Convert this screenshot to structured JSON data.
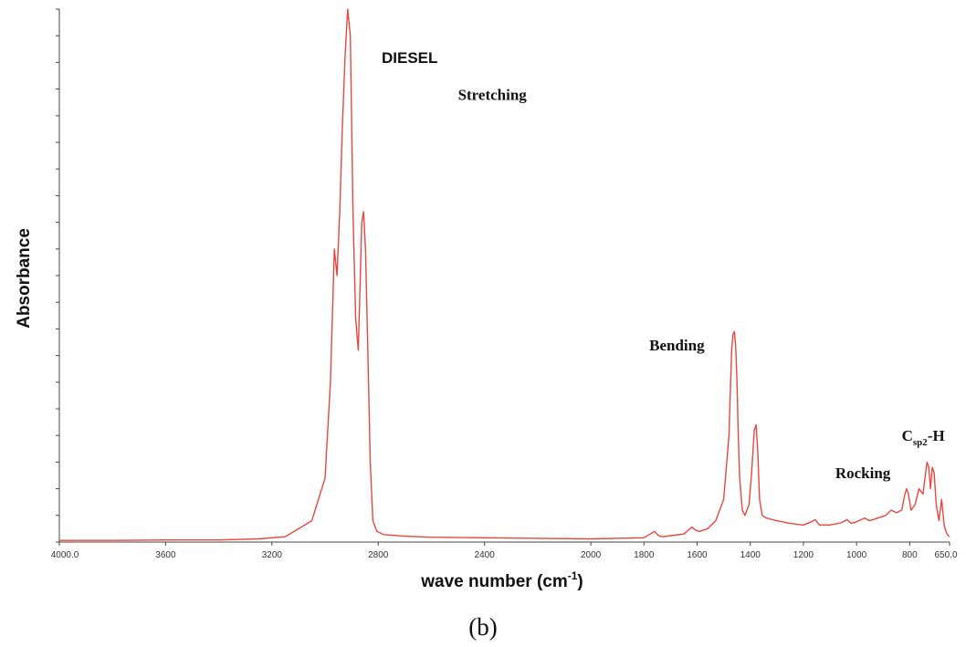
{
  "chart_data": {
    "type": "line",
    "title": "DIESEL",
    "xlabel": {
      "main": "wave number (cm",
      "sup": "-1",
      "close": ")"
    },
    "ylabel": "Absorbance",
    "panel_label": "(b)",
    "xlim": [
      4000,
      650
    ],
    "x_reversed": true,
    "ylim": [
      0,
      1.0
    ],
    "x_ticks": [
      {
        "value": 4000,
        "label": "4000.0"
      },
      {
        "value": 3600,
        "label": "3600"
      },
      {
        "value": 3200,
        "label": "3200"
      },
      {
        "value": 2800,
        "label": "2800"
      },
      {
        "value": 2400,
        "label": "2400"
      },
      {
        "value": 2000,
        "label": "2000"
      },
      {
        "value": 1800,
        "label": "1800"
      },
      {
        "value": 1600,
        "label": "1600"
      },
      {
        "value": 1400,
        "label": "1400"
      },
      {
        "value": 1200,
        "label": "1200"
      },
      {
        "value": 1000,
        "label": "1000"
      },
      {
        "value": 800,
        "label": "800"
      },
      {
        "value": 650,
        "label": "650.0"
      }
    ],
    "annotations": [
      {
        "text": "Stretching",
        "x": 2500,
        "y": 0.83
      },
      {
        "text": "Bending",
        "x": 1780,
        "y": 0.36
      },
      {
        "text": "Rocking",
        "x": 1080,
        "y": 0.12
      },
      {
        "text": "C",
        "sub": "sp2",
        "suffix": "-H",
        "x": 830,
        "y": 0.19
      }
    ],
    "series": [
      {
        "color": "#e8473f",
        "x": [
          4000,
          3800,
          3600,
          3400,
          3250,
          3150,
          3050,
          3000,
          2980,
          2965,
          2955,
          2945,
          2935,
          2925,
          2915,
          2905,
          2895,
          2885,
          2875,
          2868,
          2862,
          2855,
          2848,
          2840,
          2830,
          2820,
          2805,
          2780,
          2700,
          2600,
          2400,
          2200,
          2000,
          1800,
          1760,
          1745,
          1730,
          1700,
          1650,
          1620,
          1605,
          1590,
          1560,
          1530,
          1500,
          1480,
          1470,
          1465,
          1460,
          1455,
          1450,
          1445,
          1440,
          1430,
          1420,
          1405,
          1395,
          1385,
          1378,
          1372,
          1365,
          1355,
          1340,
          1300,
          1250,
          1200,
          1170,
          1155,
          1140,
          1100,
          1060,
          1035,
          1020,
          1000,
          970,
          950,
          920,
          890,
          870,
          850,
          830,
          818,
          812,
          805,
          795,
          780,
          765,
          750,
          740,
          735,
          728,
          722,
          715,
          708,
          700,
          690,
          680,
          670,
          660,
          650
        ],
        "y": [
          0.003,
          0.003,
          0.004,
          0.004,
          0.006,
          0.01,
          0.04,
          0.12,
          0.3,
          0.55,
          0.5,
          0.62,
          0.78,
          0.91,
          1.0,
          0.95,
          0.62,
          0.42,
          0.36,
          0.49,
          0.6,
          0.62,
          0.55,
          0.38,
          0.15,
          0.04,
          0.02,
          0.014,
          0.011,
          0.009,
          0.008,
          0.007,
          0.006,
          0.008,
          0.02,
          0.012,
          0.01,
          0.012,
          0.015,
          0.028,
          0.022,
          0.02,
          0.025,
          0.04,
          0.08,
          0.2,
          0.36,
          0.39,
          0.395,
          0.37,
          0.3,
          0.2,
          0.12,
          0.06,
          0.05,
          0.07,
          0.13,
          0.21,
          0.22,
          0.17,
          0.08,
          0.05,
          0.045,
          0.04,
          0.035,
          0.032,
          0.038,
          0.042,
          0.032,
          0.032,
          0.036,
          0.042,
          0.035,
          0.038,
          0.045,
          0.04,
          0.045,
          0.05,
          0.06,
          0.055,
          0.06,
          0.09,
          0.1,
          0.09,
          0.06,
          0.07,
          0.1,
          0.09,
          0.13,
          0.15,
          0.14,
          0.1,
          0.14,
          0.13,
          0.07,
          0.04,
          0.08,
          0.03,
          0.015,
          0.01
        ]
      }
    ]
  }
}
